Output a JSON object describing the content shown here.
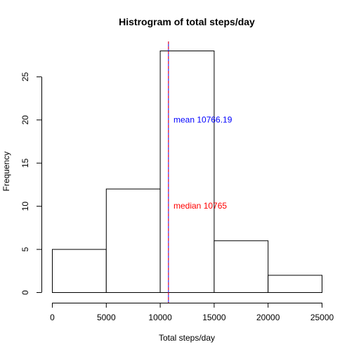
{
  "chart_data": {
    "type": "histogram",
    "title": "Histrogram of total steps/day",
    "xlabel": "Total steps/day",
    "ylabel": "Frequency",
    "xlim": [
      0,
      25000
    ],
    "ylim": [
      0,
      28
    ],
    "bins": [
      {
        "from": 0,
        "to": 5000,
        "count": 5
      },
      {
        "from": 5000,
        "to": 10000,
        "count": 12
      },
      {
        "from": 10000,
        "to": 15000,
        "count": 28
      },
      {
        "from": 15000,
        "to": 20000,
        "count": 6
      },
      {
        "from": 20000,
        "to": 25000,
        "count": 2
      }
    ],
    "x_ticks": [
      0,
      5000,
      10000,
      15000,
      20000,
      25000
    ],
    "x_tick_labels": [
      "0",
      "5000",
      "10000",
      "15000",
      "20000",
      "25000"
    ],
    "y_ticks": [
      0,
      5,
      10,
      15,
      20,
      25
    ],
    "y_tick_labels": [
      "0",
      "5",
      "10",
      "15",
      "20",
      "25"
    ],
    "reference_lines": [
      {
        "name": "mean",
        "value": 10766.19,
        "color": "#0000ff",
        "label": "mean 10766.19",
        "label_y": 20
      },
      {
        "name": "median",
        "value": 10765,
        "color": "#ff0000",
        "label": "median 10765",
        "label_y": 10
      }
    ],
    "grid": false
  }
}
